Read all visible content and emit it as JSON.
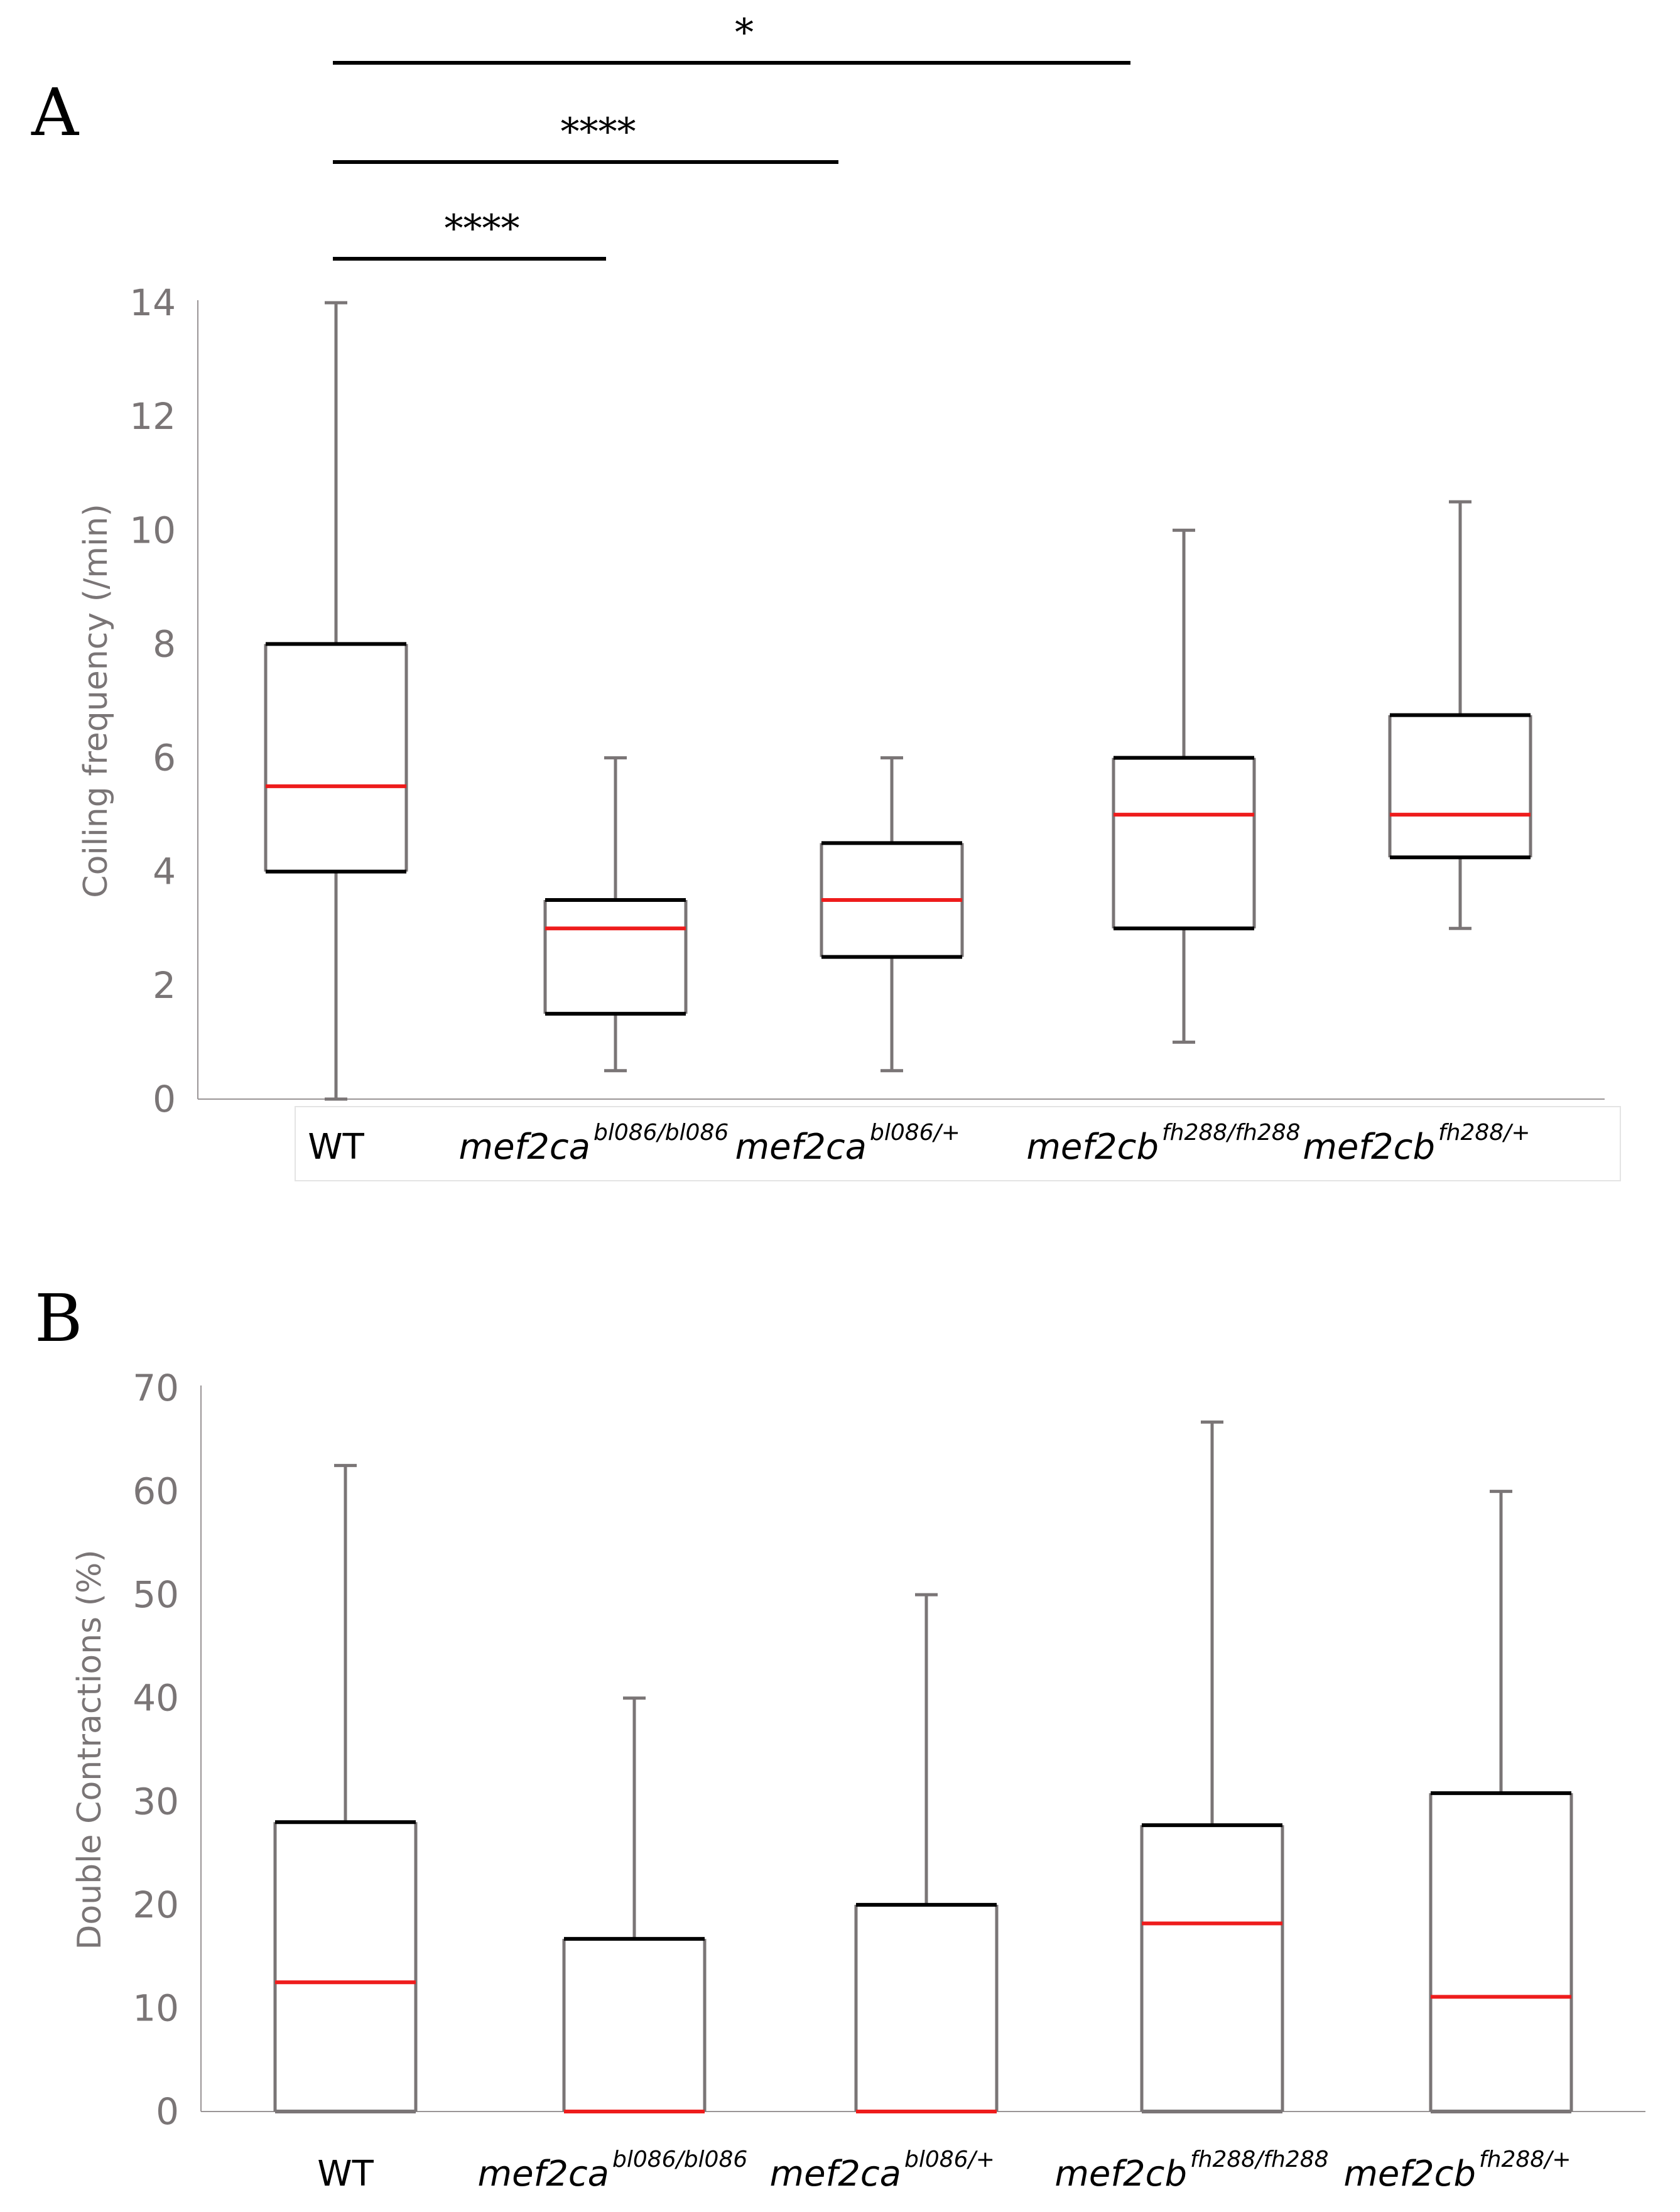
{
  "panels": {
    "a": {
      "letter": "A"
    },
    "b": {
      "letter": "B"
    }
  },
  "categories": [
    {
      "base": "WT",
      "sup": "",
      "italic": false
    },
    {
      "base": "mef2ca",
      "sup": "bl086/bl086",
      "italic": true
    },
    {
      "base": "mef2ca",
      "sup": "bl086/+",
      "italic": true
    },
    {
      "base": "mef2cb",
      "sup": "fh288/fh288",
      "italic": true
    },
    {
      "base": "mef2cb",
      "sup": "fh288/+",
      "italic": true
    }
  ],
  "colors": {
    "box_edge": "#000000",
    "whisker": "#7a7576",
    "median": "#ee1c1c",
    "axis": "#9a9596"
  },
  "chart_data": [
    {
      "type": "box",
      "panel": "A",
      "title": "",
      "xlabel": "",
      "ylabel": "Coiling frequency (/min)",
      "ylim": [
        0,
        14
      ],
      "yticks": [
        0,
        2,
        4,
        6,
        8,
        10,
        12,
        14
      ],
      "categories": [
        "WT",
        "mef2ca bl086/bl086",
        "mef2ca bl086/+",
        "mef2cb fh288/fh288",
        "mef2cb fh288/+"
      ],
      "boxes": [
        {
          "min": 0,
          "q1": 4,
          "median": 5.5,
          "q3": 8,
          "max": 14
        },
        {
          "min": 0.5,
          "q1": 1.5,
          "median": 3,
          "q3": 3.5,
          "max": 6
        },
        {
          "min": 0.5,
          "q1": 2.5,
          "median": 3.5,
          "q3": 4.5,
          "max": 6
        },
        {
          "min": 1,
          "q1": 3,
          "median": 5,
          "q3": 6,
          "max": 10
        },
        {
          "min": 3,
          "q1": 4.25,
          "median": 5,
          "q3": 6.75,
          "max": 10.5
        }
      ],
      "significance": [
        {
          "from": 0,
          "to": 1,
          "label": "****"
        },
        {
          "from": 0,
          "to": 2,
          "label": "****"
        },
        {
          "from": 0,
          "to": 3,
          "label": "*"
        }
      ]
    },
    {
      "type": "box",
      "panel": "B",
      "title": "",
      "xlabel": "",
      "ylabel": "Double Contractions (%)",
      "ylim": [
        0,
        70
      ],
      "yticks": [
        0,
        10,
        20,
        30,
        40,
        50,
        60,
        70
      ],
      "categories": [
        "WT",
        "mef2ca bl086/bl086",
        "mef2ca bl086/+",
        "mef2cb fh288/fh288",
        "mef2cb fh288/+"
      ],
      "boxes": [
        {
          "min": 0,
          "q1": 0,
          "median": 12.5,
          "q3": 28,
          "max": 62.5
        },
        {
          "min": 0,
          "q1": 0,
          "median": 0,
          "q3": 16.7,
          "max": 40
        },
        {
          "min": 0,
          "q1": 0,
          "median": 0,
          "q3": 20,
          "max": 50
        },
        {
          "min": 0,
          "q1": 0,
          "median": 18.2,
          "q3": 27.7,
          "max": 66.7
        },
        {
          "min": 0,
          "q1": 0,
          "median": 11.1,
          "q3": 30.8,
          "max": 60
        }
      ],
      "significance": []
    }
  ]
}
